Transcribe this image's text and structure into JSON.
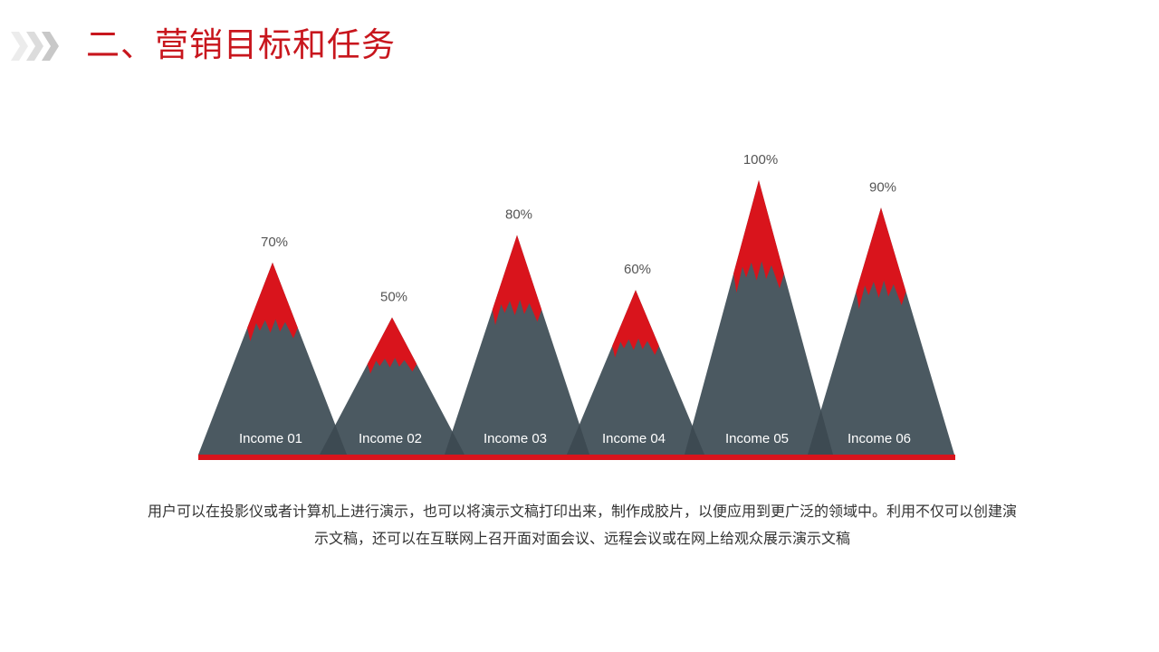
{
  "header": {
    "title": "二、营销目标和任务",
    "icon": "triple-chevron-right-icon"
  },
  "colors": {
    "accent": "#d9141c",
    "mountain": "#4b5961",
    "mountain_overlap": "#3d4a52",
    "title": "#c8161d",
    "label": "#555555"
  },
  "chart_data": {
    "type": "bar",
    "style": "mountain/triangle bars with red snow caps",
    "categories": [
      "Income 01",
      "Income 02",
      "Income 03",
      "Income 04",
      "Income 05",
      "Income 06"
    ],
    "values": [
      70,
      50,
      80,
      60,
      100,
      90
    ],
    "value_labels": [
      "70%",
      "50%",
      "80%",
      "60%",
      "100%",
      "90%"
    ],
    "unit": "%",
    "title": "",
    "xlabel": "",
    "ylabel": "",
    "ylim": [
      0,
      100
    ],
    "grid": false,
    "legend": "none"
  },
  "description": {
    "line1": "用户可以在投影仪或者计算机上进行演示，也可以将演示文稿打印出来，制作成胶片，以便应用到更广泛的领域中。利用不仅可以创建演",
    "line2": "示文稿，还可以在互联网上召开面对面会议、远程会议或在网上给观众展示演示文稿"
  }
}
